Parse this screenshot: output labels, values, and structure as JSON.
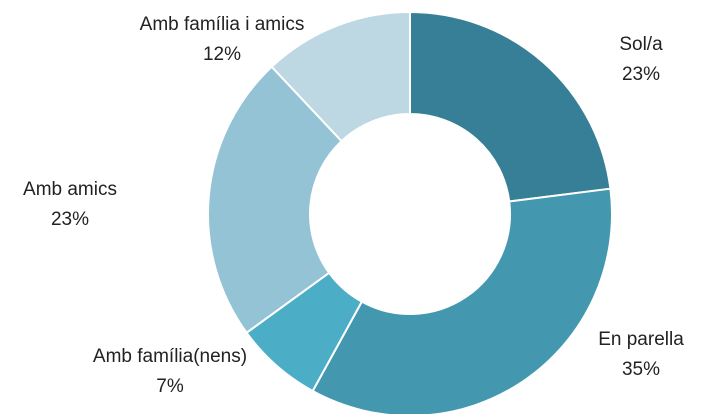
{
  "chart_data": {
    "type": "pie",
    "categories": [
      "Sol/a",
      "En parella",
      "Amb família(nens)",
      "Amb amics",
      "Amb família i amics"
    ],
    "values": [
      23,
      35,
      7,
      23,
      12
    ],
    "value_labels": [
      "23%",
      "35%",
      "7%",
      "23%",
      "12%"
    ],
    "colors": [
      "#377f96",
      "#4398b0",
      "#4badc6",
      "#93c3d4",
      "#bdd7e3"
    ],
    "donut": true
  }
}
